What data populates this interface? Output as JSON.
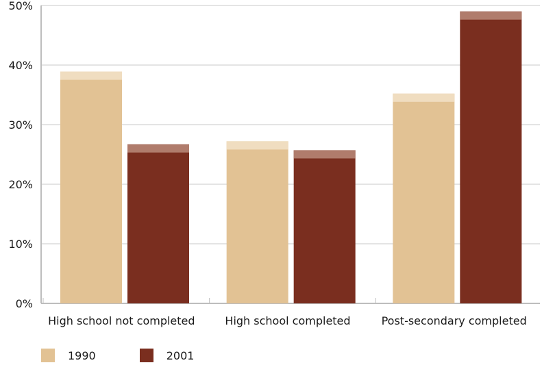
{
  "chart_data": {
    "type": "bar",
    "categories": [
      "High school not completed",
      "High school completed",
      "Post-secondary completed"
    ],
    "series": [
      {
        "name": "1990",
        "values": [
          38.9,
          27.2,
          35.2
        ]
      },
      {
        "name": "2001",
        "values": [
          26.7,
          25.7,
          49.0
        ]
      }
    ],
    "y_ticks": [
      "0%",
      "10%",
      "20%",
      "30%",
      "40%",
      "50%"
    ],
    "ylim": [
      0,
      50
    ],
    "grid": true,
    "legend_position": "bottom-left",
    "colors": {
      "1990": "#e2c294",
      "1990_highlight": "#f0ddc0",
      "2001": "#7a2e1f",
      "2001_highlight": "#b07c6c",
      "grid": "#c8c8c8",
      "axis": "#bdbdbd"
    }
  }
}
